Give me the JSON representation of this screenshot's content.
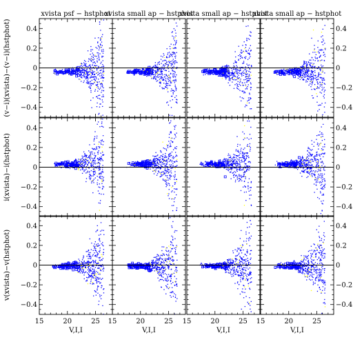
{
  "chart_data": {
    "type": "scatter",
    "layout": "3 rows x 4 columns of panels with shared axes",
    "column_titles": [
      "xvista psf − hstphot",
      "xvista small ap − hstphot",
      "xvista small ap − hstphot",
      "xvista small ap − hstphot"
    ],
    "row_ylabels": [
      "(v−i)(xvista)−(v−i)(hstphot)",
      "i(xvista)−i(hstphot)",
      "v(xvista)−v(hstphot)"
    ],
    "xlabel": "V,I,I",
    "xlim": [
      15,
      28
    ],
    "ylim": [
      -0.5,
      0.5
    ],
    "x_ticks": [
      15,
      20,
      25
    ],
    "y_ticks_left": [
      "−0.4",
      "−0.2",
      "0",
      "0.2",
      "0.4"
    ],
    "y_ticks_right": [
      "0.4",
      "0.2",
      "0",
      "−0.2",
      "−0.4"
    ],
    "zero_line": 0,
    "grid": false,
    "legend": "none",
    "series": [
      {
        "color": "#0000ff",
        "marker": "dots, squares, triangles"
      },
      {
        "color": "#ffff00",
        "marker": "dots"
      }
    ]
  }
}
